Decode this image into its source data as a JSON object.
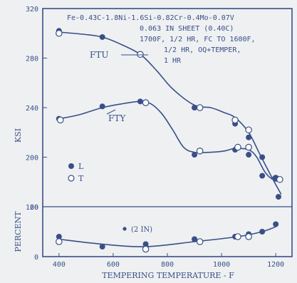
{
  "colors": {
    "ink": "#3a4f86",
    "paper": "#eef0f2"
  },
  "chart_data": {
    "type": "line",
    "annotation_lines": [
      "Fe-0.43C-1.8Ni-1.6Si-0.82Cr-0.4Mo-0.07V",
      "0.063 IN SHEET (0.40C)",
      "1700F, 1/2 HR, FC TO 1600F,",
      "1/2 HR, OQ+TEMPER,",
      "1 HR"
    ],
    "xlabel": "TEMPERING TEMPERATURE - F",
    "ylabel_upper": "KSI",
    "ylabel_lower": "PERCENT",
    "xlim": [
      340,
      1260
    ],
    "ylim_upper": [
      160,
      320
    ],
    "ylim_lower": [
      0,
      20
    ],
    "x_ticks": [
      "400",
      "600",
      "800",
      "1000",
      "1200"
    ],
    "y_ticks_upper": [
      "320",
      "280",
      "240",
      "200",
      "160"
    ],
    "y_ticks_lower": [
      "20",
      "0"
    ],
    "legend": {
      "filled": "L",
      "open": "T",
      "position": "middle-left"
    },
    "series": [
      {
        "name": "FTU",
        "panel": "upper",
        "curve": [
          [
            400,
            301
          ],
          [
            500,
            299
          ],
          [
            560,
            297
          ],
          [
            620,
            292
          ],
          [
            700,
            283
          ],
          [
            760,
            270
          ],
          [
            820,
            255
          ],
          [
            900,
            242
          ],
          [
            960,
            240
          ],
          [
            1010,
            236
          ],
          [
            1050,
            232
          ],
          [
            1100,
            220
          ],
          [
            1140,
            203
          ],
          [
            1180,
            186
          ],
          [
            1220,
            170
          ]
        ],
        "points_L": [
          [
            400,
            302
          ],
          [
            560,
            297
          ],
          [
            700,
            283
          ],
          [
            900,
            240
          ],
          [
            1050,
            227
          ],
          [
            1100,
            216
          ],
          [
            1150,
            200
          ],
          [
            1210,
            168
          ]
        ],
        "points_T": [
          [
            400,
            300
          ],
          [
            700,
            283
          ],
          [
            920,
            240
          ],
          [
            1050,
            230
          ],
          [
            1100,
            222
          ],
          [
            1200,
            183
          ]
        ]
      },
      {
        "name": "FTY",
        "panel": "upper",
        "curve": [
          [
            400,
            231
          ],
          [
            470,
            234
          ],
          [
            560,
            240
          ],
          [
            630,
            243
          ],
          [
            700,
            245
          ],
          [
            740,
            243
          ],
          [
            780,
            235
          ],
          [
            820,
            222
          ],
          [
            860,
            208
          ],
          [
            900,
            204
          ],
          [
            960,
            204
          ],
          [
            1010,
            205
          ],
          [
            1050,
            207
          ],
          [
            1100,
            206
          ],
          [
            1130,
            200
          ],
          [
            1160,
            188
          ],
          [
            1190,
            182
          ],
          [
            1220,
            182
          ]
        ],
        "points_L": [
          [
            400,
            231
          ],
          [
            560,
            241
          ],
          [
            700,
            245
          ],
          [
            900,
            202
          ],
          [
            1050,
            206
          ],
          [
            1100,
            202
          ],
          [
            1150,
            185
          ],
          [
            1200,
            183
          ]
        ],
        "points_T": [
          [
            405,
            230
          ],
          [
            720,
            244
          ],
          [
            920,
            205
          ],
          [
            1060,
            208
          ],
          [
            1100,
            208
          ],
          [
            1215,
            182
          ]
        ]
      },
      {
        "name": "(2 IN)",
        "panel": "lower",
        "curve": [
          [
            400,
            7
          ],
          [
            560,
            5
          ],
          [
            720,
            4
          ],
          [
            900,
            6
          ],
          [
            1060,
            8
          ],
          [
            1150,
            10
          ],
          [
            1200,
            12
          ]
        ],
        "points_L": [
          [
            400,
            8
          ],
          [
            560,
            4
          ],
          [
            720,
            5
          ],
          [
            900,
            7
          ],
          [
            1050,
            8
          ],
          [
            1100,
            9
          ],
          [
            1150,
            10
          ],
          [
            1200,
            13
          ]
        ],
        "points_T": [
          [
            400,
            6
          ],
          [
            720,
            3
          ],
          [
            920,
            6
          ],
          [
            1060,
            8
          ],
          [
            1100,
            8
          ]
        ]
      }
    ]
  }
}
